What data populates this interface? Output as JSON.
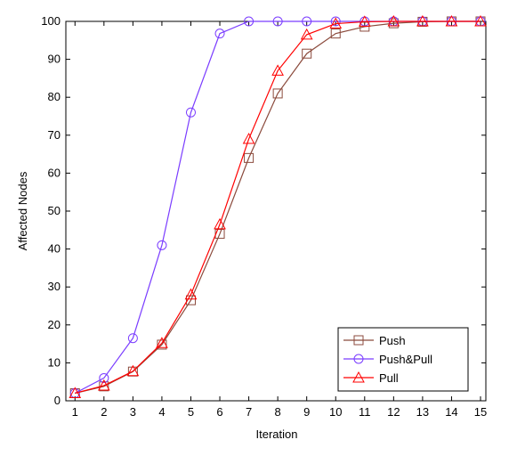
{
  "chart_data": {
    "type": "line",
    "title": "",
    "xlabel": "Iteration",
    "ylabel": "Affected Nodes",
    "xlim": [
      0.5,
      15
    ],
    "ylim": [
      0,
      100
    ],
    "x": [
      1,
      2,
      3,
      4,
      5,
      6,
      7,
      8,
      9,
      10,
      11,
      12,
      13,
      14,
      15
    ],
    "xticks": [
      1,
      2,
      3,
      4,
      5,
      6,
      7,
      8,
      9,
      10,
      11,
      12,
      13,
      14,
      15
    ],
    "yticks": [
      0,
      10,
      20,
      30,
      40,
      50,
      60,
      70,
      80,
      90,
      100
    ],
    "grid": false,
    "legend_position": "bottom-right",
    "series": [
      {
        "name": "Push",
        "color": "#8b4a3c",
        "marker": "square",
        "values": [
          2,
          3.8,
          7.7,
          14.8,
          26.5,
          44,
          64,
          81,
          91.5,
          96.8,
          98.6,
          99.5,
          99.9,
          100,
          100
        ]
      },
      {
        "name": "Push&Pull",
        "color": "#7a3cff",
        "marker": "circle",
        "values": [
          2,
          6,
          16.5,
          41,
          76,
          96.8,
          100,
          100,
          100,
          100,
          100,
          100,
          100,
          100,
          100
        ]
      },
      {
        "name": "Pull",
        "color": "#ff0000",
        "marker": "triangle",
        "values": [
          2,
          4,
          7.8,
          15.2,
          28,
          46.5,
          69,
          87,
          96.5,
          99.4,
          99.9,
          100,
          100,
          100,
          100
        ]
      }
    ]
  }
}
